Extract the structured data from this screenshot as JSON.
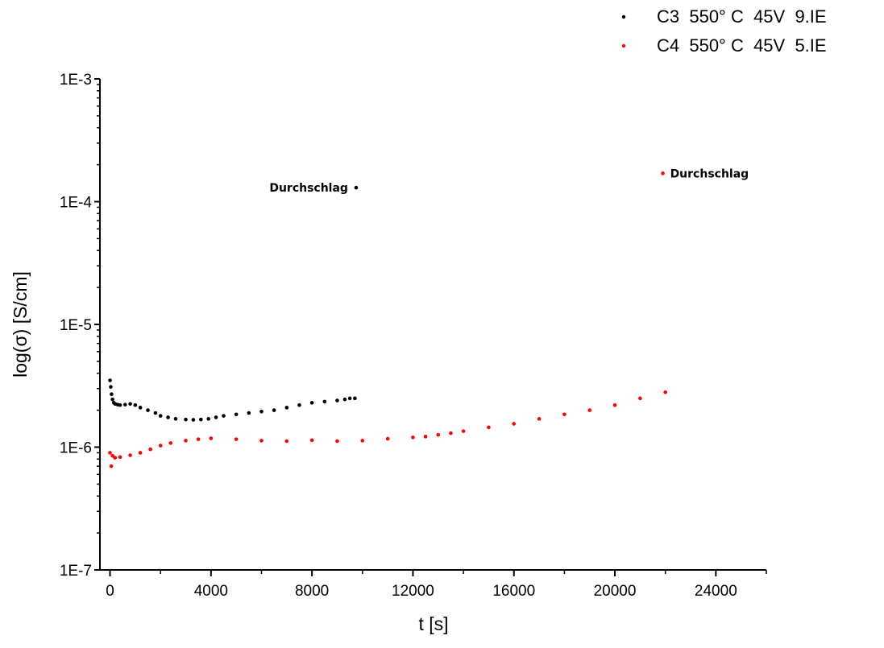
{
  "chart_data": {
    "type": "scatter",
    "title": "",
    "xlabel": "t [s]",
    "ylabel": "log(σ) [S/cm]",
    "xlim": [
      -400,
      26000
    ],
    "ylim": [
      1e-07,
      0.001
    ],
    "yscale": "log",
    "grid": false,
    "legend_position": "top-right",
    "x_ticks": [
      0,
      4000,
      8000,
      12000,
      16000,
      20000,
      24000
    ],
    "x_tick_labels": [
      "0",
      "4000",
      "8000",
      "12000",
      "16000",
      "20000",
      "24000"
    ],
    "y_ticks": [
      1e-07,
      1e-06,
      1e-05,
      0.0001,
      0.001
    ],
    "y_tick_labels": [
      "1E-7",
      "1E-6",
      "1E-5",
      "1E-4",
      "1E-3"
    ],
    "series": [
      {
        "name": "C3  550° C  45V  9.IE",
        "color": "#000000",
        "x": [
          0,
          30,
          60,
          100,
          150,
          200,
          300,
          400,
          600,
          800,
          1000,
          1200,
          1500,
          1800,
          2000,
          2300,
          2600,
          3000,
          3300,
          3600,
          3900,
          4200,
          4500,
          5000,
          5500,
          6000,
          6500,
          7000,
          7500,
          8000,
          8500,
          9000,
          9300,
          9500,
          9700
        ],
        "y": [
          3.5e-06,
          3.1e-06,
          2.7e-06,
          2.45e-06,
          2.3e-06,
          2.25e-06,
          2.22e-06,
          2.2e-06,
          2.22e-06,
          2.25e-06,
          2.2e-06,
          2.1e-06,
          2e-06,
          1.9e-06,
          1.8e-06,
          1.75e-06,
          1.7e-06,
          1.68e-06,
          1.67e-06,
          1.68e-06,
          1.7e-06,
          1.75e-06,
          1.8e-06,
          1.85e-06,
          1.9e-06,
          1.95e-06,
          2e-06,
          2.1e-06,
          2.2e-06,
          2.3e-06,
          2.35e-06,
          2.4e-06,
          2.45e-06,
          2.5e-06,
          2.5e-06
        ]
      },
      {
        "name": "C4  550° C  45V  5.IE",
        "color": "#ff0000",
        "x": [
          0,
          50,
          100,
          200,
          400,
          800,
          1200,
          1600,
          2000,
          2400,
          3000,
          3500,
          4000,
          5000,
          6000,
          7000,
          8000,
          9000,
          10000,
          11000,
          12000,
          12500,
          13000,
          13500,
          14000,
          15000,
          16000,
          17000,
          18000,
          19000,
          20000,
          21000,
          22000
        ],
        "y": [
          9e-07,
          7e-07,
          8.5e-07,
          8.2e-07,
          8.3e-07,
          8.6e-07,
          9e-07,
          9.6e-07,
          1.03e-06,
          1.08e-06,
          1.13e-06,
          1.16e-06,
          1.18e-06,
          1.16e-06,
          1.13e-06,
          1.12e-06,
          1.14e-06,
          1.12e-06,
          1.13e-06,
          1.17e-06,
          1.2e-06,
          1.22e-06,
          1.26e-06,
          1.3e-06,
          1.35e-06,
          1.45e-06,
          1.55e-06,
          1.7e-06,
          1.85e-06,
          2e-06,
          2.2e-06,
          2.5e-06,
          2.8e-06
        ]
      }
    ],
    "annotations": [
      {
        "text": "Durchschlag",
        "x": 9750,
        "y": 0.00013,
        "series": 0,
        "text_side": "left"
      },
      {
        "text": "Durchschlag",
        "x": 21900,
        "y": 0.00017,
        "series": 1,
        "text_side": "right"
      }
    ]
  }
}
